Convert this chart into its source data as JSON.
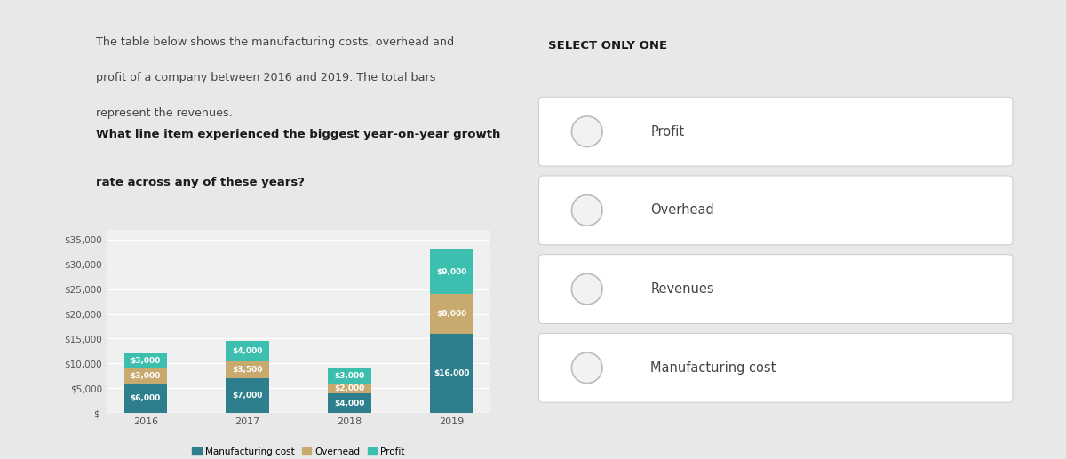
{
  "years": [
    "2016",
    "2017",
    "2018",
    "2019"
  ],
  "manufacturing": [
    6000,
    7000,
    4000,
    16000
  ],
  "overhead": [
    3000,
    3500,
    2000,
    8000
  ],
  "profit": [
    3000,
    4000,
    3000,
    9000
  ],
  "bar_color_manufacturing": "#2d7f8e",
  "bar_color_overhead": "#c8a96e",
  "bar_color_profit": "#3dbfb0",
  "chart_bg": "#f0f0f0",
  "outer_bg": "#e8e8e8",
  "card_bg": "#ffffff",
  "title_text1": "The table below shows the manufacturing costs, overhead and",
  "title_text2": "profit of a company between 2016 and 2019. The total bars",
  "title_text3": "represent the revenues.",
  "question_text1": "What line item experienced the biggest year-on-year growth",
  "question_text2": "rate across any of these years?",
  "select_label": "SELECT ONLY ONE",
  "options": [
    "Profit",
    "Overhead",
    "Revenues",
    "Manufacturing cost"
  ],
  "ylim": [
    0,
    37000
  ],
  "yticks": [
    0,
    5000,
    10000,
    15000,
    20000,
    25000,
    30000,
    35000
  ],
  "ytick_labels": [
    "$-",
    "$5,000",
    "$10,000",
    "$15,000",
    "$20,000",
    "$25,000",
    "$30,000",
    "$35,000"
  ],
  "label_fontsize": 6.5,
  "legend_labels": [
    "Manufacturing cost",
    "Overhead",
    "Profit"
  ]
}
